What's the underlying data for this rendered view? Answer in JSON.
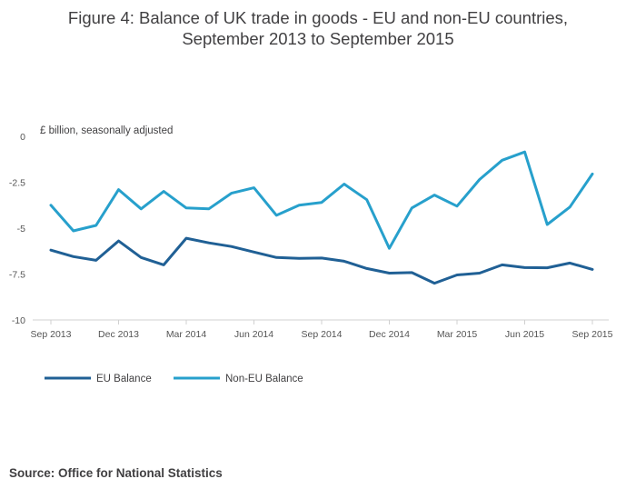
{
  "title_line1": "Figure 4: Balance of UK trade in goods - EU and non-EU countries,",
  "title_line2": "September 2013 to September 2015",
  "source": "Source: Office for National Statistics",
  "chart_data": {
    "type": "line",
    "title": "Figure 4: Balance of UK trade in goods - EU and non-EU countries, September 2013 to September 2015",
    "ylabel": "£ billion, seasonally adjusted",
    "xlabel": "",
    "ylim": [
      -10,
      0
    ],
    "yticks": [
      0,
      -2.5,
      -5,
      -7.5,
      -10
    ],
    "ytick_labels": [
      "0",
      "-2.5",
      "-5",
      "-7.5",
      "-10"
    ],
    "x": [
      "Sep 2013",
      "Oct 2013",
      "Nov 2013",
      "Dec 2013",
      "Jan 2014",
      "Feb 2014",
      "Mar 2014",
      "Apr 2014",
      "May 2014",
      "Jun 2014",
      "Jul 2014",
      "Aug 2014",
      "Sep 2014",
      "Oct 2014",
      "Nov 2014",
      "Dec 2014",
      "Jan 2015",
      "Feb 2015",
      "Mar 2015",
      "Apr 2015",
      "May 2015",
      "Jun 2015",
      "Jul 2015",
      "Aug 2015",
      "Sep 2015"
    ],
    "xtick_labels": [
      "Sep 2013",
      "Dec 2013",
      "Mar 2014",
      "Jun 2014",
      "Sep 2014",
      "Dec 2014",
      "Mar 2015",
      "Jun 2015",
      "Sep 2015"
    ],
    "xtick_indices": [
      0,
      3,
      6,
      9,
      12,
      15,
      18,
      21,
      24
    ],
    "grid": false,
    "legend_position": "bottom-left",
    "series": [
      {
        "name": "EU Balance",
        "color": "#206095",
        "values": [
          -6.2,
          -6.55,
          -6.75,
          -5.7,
          -6.6,
          -7.0,
          -5.55,
          -5.8,
          -6.0,
          -6.3,
          -6.6,
          -6.65,
          -6.63,
          -6.8,
          -7.2,
          -7.45,
          -7.42,
          -8.0,
          -7.55,
          -7.45,
          -7.0,
          -7.15,
          -7.16,
          -6.9,
          -7.25
        ]
      },
      {
        "name": "Non-EU Balance",
        "color": "#27a0cc",
        "values": [
          -3.75,
          -5.15,
          -4.85,
          -2.9,
          -3.95,
          -3.0,
          -3.9,
          -3.95,
          -3.1,
          -2.8,
          -4.3,
          -3.75,
          -3.6,
          -2.6,
          -3.45,
          -6.1,
          -3.9,
          -3.2,
          -3.8,
          -2.35,
          -1.3,
          -0.85,
          -4.8,
          -3.85,
          -2.05
        ]
      }
    ]
  }
}
